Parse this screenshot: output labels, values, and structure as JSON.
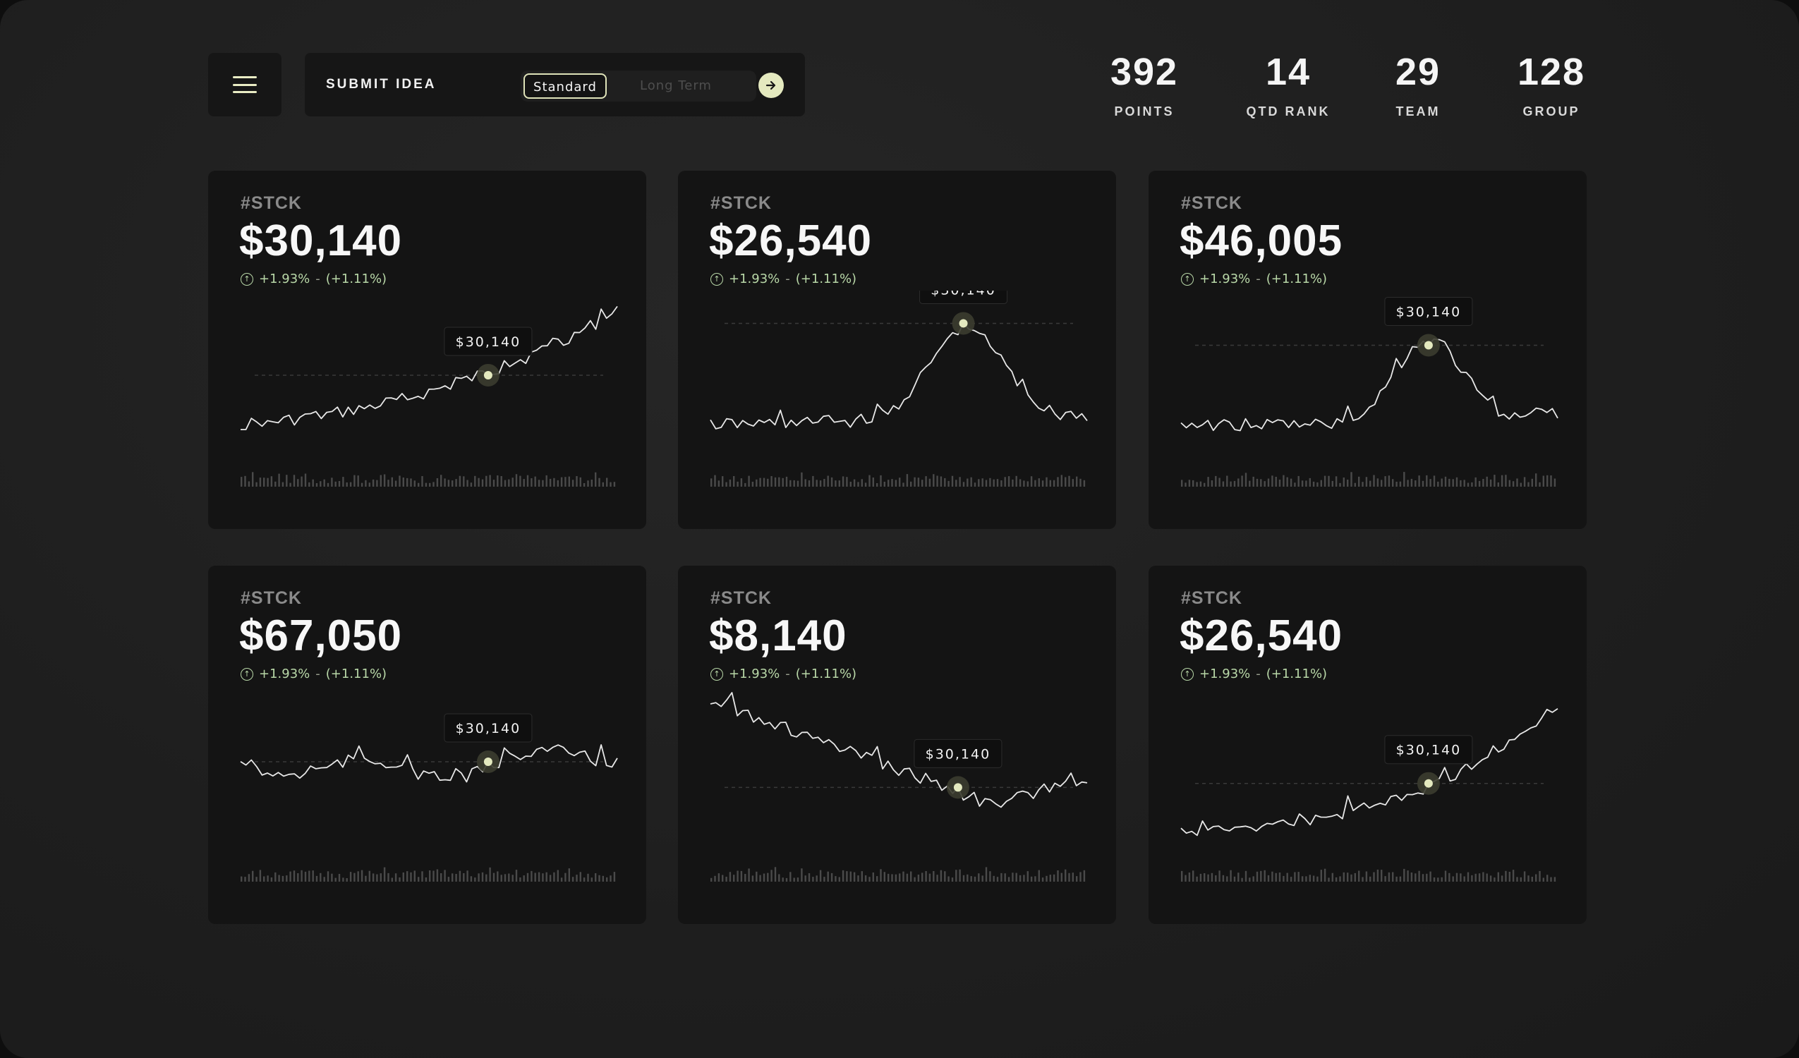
{
  "toolbar": {
    "menu_icon": "hamburger-menu-icon",
    "submit_label": "SUBMIT IDEA",
    "toggle_options": [
      "Standard",
      "Long Term"
    ],
    "toggle_selected": "Standard",
    "go_icon": "arrow-right-icon",
    "accent_color": "#e4e9bf"
  },
  "stats": [
    {
      "value": "392",
      "label": "POINTS"
    },
    {
      "value": "14",
      "label": "QTD RANK"
    },
    {
      "value": "29",
      "label": "TEAM"
    },
    {
      "value": "128",
      "label": "GROUP"
    }
  ],
  "cards": [
    {
      "ticker": "#STCK",
      "price": "$30,140",
      "change": "+1.93%",
      "change_pct": "(+1.11%)",
      "tooltip": "$30,140",
      "pattern": "up"
    },
    {
      "ticker": "#STCK",
      "price": "$26,540",
      "change": "+1.93%",
      "change_pct": "(+1.11%)",
      "tooltip": "$30,140",
      "pattern": "peak"
    },
    {
      "ticker": "#STCK",
      "price": "$46,005",
      "change": "+1.93%",
      "change_pct": "(+1.11%)",
      "tooltip": "$30,140",
      "pattern": "peak2"
    },
    {
      "ticker": "#STCK",
      "price": "$67,050",
      "change": "+1.93%",
      "change_pct": "(+1.11%)",
      "tooltip": "$30,140",
      "pattern": "flat"
    },
    {
      "ticker": "#STCK",
      "price": "$8,140",
      "change": "+1.93%",
      "change_pct": "(+1.11%)",
      "tooltip": "$30,140",
      "pattern": "down"
    },
    {
      "ticker": "#STCK",
      "price": "$26,540",
      "change": "+1.93%",
      "change_pct": "(+1.11%)",
      "tooltip": "$30,140",
      "pattern": "up2"
    }
  ],
  "colors": {
    "positive": "#b9d8a8",
    "line": "#e8e8e8",
    "volume": "#4a4a4a"
  }
}
